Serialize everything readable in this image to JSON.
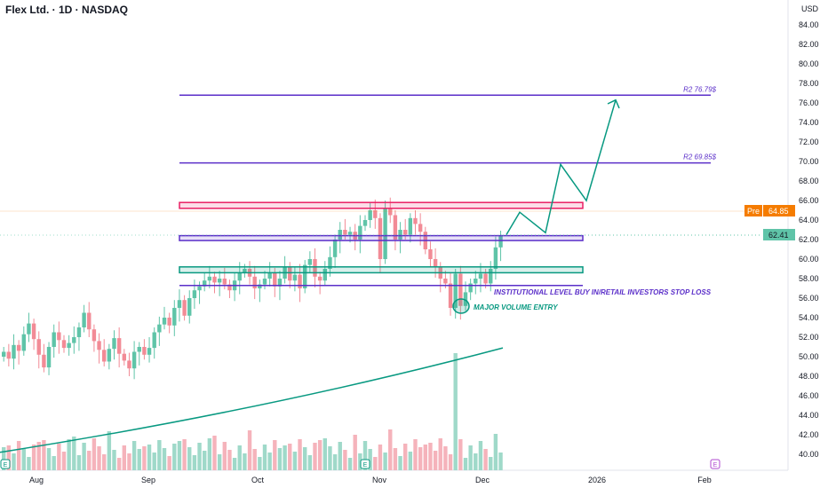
{
  "header": {
    "title": "Flex Ltd. · 1D · NASDAQ",
    "currency": "USD"
  },
  "price_tags": {
    "pre_label": "Pre",
    "pre_value": "64.85",
    "last_value": "62.41",
    "pre_color": "#f57c00",
    "last_color": "#5fc4a8"
  },
  "annotations": {
    "r2_high": "R2 76.79$",
    "r2_low": "R2 69.85$",
    "institutional": "INSTITUTIONAL LEVEL BUY IN/RETAIL INVESTORS STOP LOSS",
    "volume_entry": "MAJOR VOLUME ENTRY"
  },
  "chart_data": {
    "type": "candlestick",
    "yticks": [
      "84.00",
      "82.00",
      "80.00",
      "78.00",
      "76.00",
      "74.00",
      "72.00",
      "70.00",
      "68.00",
      "66.00",
      "64.00",
      "62.00",
      "60.00",
      "58.00",
      "56.00",
      "54.00",
      "52.00",
      "50.00",
      "48.00",
      "46.00",
      "44.00",
      "42.00",
      "40.00"
    ],
    "xticks": [
      "Aug",
      "Sep",
      "Oct",
      "Nov",
      "Dec",
      "2026",
      "Feb"
    ],
    "ylim": [
      39,
      86
    ],
    "closes": [
      50.5,
      49.8,
      51.2,
      50.6,
      52.3,
      53.4,
      51.8,
      50.2,
      48.9,
      51.0,
      52.5,
      51.7,
      50.9,
      51.4,
      52.0,
      53.0,
      54.5,
      52.8,
      51.6,
      50.7,
      49.5,
      50.8,
      51.9,
      50.3,
      49.6,
      48.8,
      50.5,
      51.0,
      50.2,
      50.9,
      52.5,
      53.3,
      54.0,
      53.2,
      55.0,
      55.8,
      54.2,
      56.0,
      56.8,
      57.2,
      57.8,
      58.2,
      57.6,
      58.0,
      57.4,
      56.8,
      57.8,
      58.6,
      59.0,
      58.2,
      57.0,
      57.4,
      58.0,
      58.6,
      57.2,
      58.0,
      59.2,
      57.8,
      58.4,
      57.0,
      59.4,
      60.0,
      58.2,
      57.8,
      59.0,
      60.2,
      62.0,
      63.0,
      62.5,
      62.8,
      62.0,
      63.4,
      64.0,
      65.0,
      64.2,
      60.0,
      65.2,
      64.5,
      62.0,
      63.0,
      62.5,
      64.2,
      63.6,
      62.8,
      61.0,
      60.0,
      59.2,
      58.0,
      57.5,
      55.0,
      58.5,
      55.2,
      56.6,
      57.5,
      58.0,
      58.5,
      57.5,
      59.0,
      61.2,
      62.41
    ],
    "volume_spike_index": 90,
    "moving_average": {
      "start": 40.2,
      "end": 50.9
    },
    "levels": [
      {
        "label": "R2 76.79$",
        "price": 76.79,
        "color": "#5b2fc9"
      },
      {
        "label": "R2 69.85$",
        "price": 69.85,
        "color": "#5b2fc9"
      }
    ],
    "zones": [
      {
        "top": 65.8,
        "bottom": 65.2,
        "color": "#e91e63"
      },
      {
        "top": 62.4,
        "bottom": 61.9,
        "color": "#5b2fc9"
      },
      {
        "top": 59.2,
        "bottom": 58.6,
        "color": "#089981"
      }
    ],
    "stop_level": 57.3,
    "projection": [
      62.5,
      64.8,
      62.7,
      69.7,
      66.0,
      76.3
    ],
    "colors": {
      "up": "#5fc4a8",
      "down": "#f28b96",
      "ma": "#089981"
    }
  }
}
